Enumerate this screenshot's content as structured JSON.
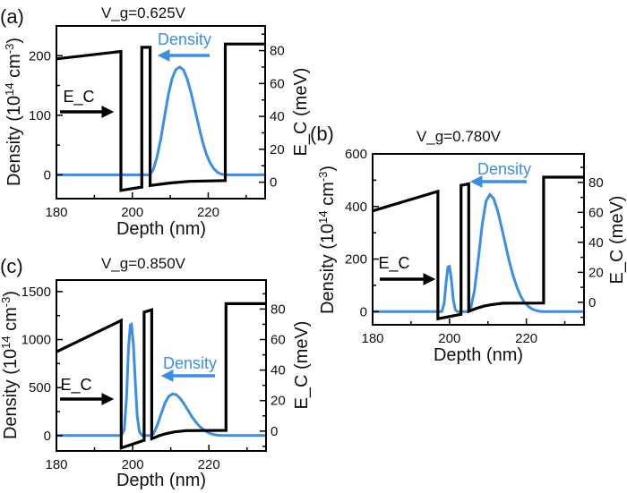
{
  "colors": {
    "density": "#3a8ee6",
    "ec": "#000000"
  },
  "chart_data": [
    {
      "type": "line",
      "panel_label": "(a)",
      "title": "V_g=0.625V",
      "xlabel": "Depth (nm)",
      "ylabel": "Density (10^14 cm^-3)",
      "y2label": "E_C (meV)",
      "xlim": [
        180,
        235
      ],
      "ylim": [
        -40,
        250
      ],
      "y2lim": [
        -10,
        95
      ],
      "xticks": [
        180,
        200,
        220
      ],
      "yticks": [
        0,
        100,
        200
      ],
      "y2ticks": [
        0,
        20,
        40,
        60,
        80
      ],
      "annotations": {
        "density": "Density",
        "ec": "E_C"
      },
      "series": [
        {
          "name": "Density",
          "axis": "left",
          "points": [
            [
              180,
              0
            ],
            [
              204.5,
              0
            ],
            [
              205.5,
              8
            ],
            [
              206.5,
              30
            ],
            [
              207.5,
              60
            ],
            [
              208.5,
              98
            ],
            [
              209.5,
              135
            ],
            [
              210.5,
              162
            ],
            [
              211.5,
              177
            ],
            [
              212.5,
              181
            ],
            [
              213.5,
              176
            ],
            [
              214.5,
              160
            ],
            [
              215.5,
              137
            ],
            [
              216.5,
              110
            ],
            [
              217.5,
              82
            ],
            [
              218.5,
              56
            ],
            [
              219.5,
              35
            ],
            [
              220.5,
              20
            ],
            [
              221.5,
              10
            ],
            [
              222.5,
              4
            ],
            [
              223.5,
              1
            ],
            [
              224.5,
              0
            ],
            [
              235,
              0
            ]
          ]
        },
        {
          "name": "E_C",
          "axis": "right",
          "points": [
            [
              180,
              75
            ],
            [
              197,
              79.5
            ],
            [
              197,
              -5
            ],
            [
              202.5,
              -3
            ],
            [
              202.5,
              82
            ],
            [
              204.7,
              82
            ],
            [
              204.7,
              -2
            ],
            [
              210,
              -0.5
            ],
            [
              215,
              0.5
            ],
            [
              224.5,
              1
            ],
            [
              224.5,
              84
            ],
            [
              235,
              84
            ]
          ]
        }
      ]
    },
    {
      "type": "line",
      "panel_label": "(b)",
      "title": "V_g=0.780V",
      "xlabel": "Depth (nm)",
      "ylabel": "Density (10^14 cm^-3)",
      "y2label": "E_C (meV)",
      "xlim": [
        180,
        235
      ],
      "ylim": [
        -50,
        600
      ],
      "y2lim": [
        -15,
        99
      ],
      "xticks": [
        180,
        200,
        220
      ],
      "yticks": [
        0,
        200,
        400,
        600
      ],
      "y2ticks": [
        0,
        20,
        40,
        60,
        80
      ],
      "annotations": {
        "density": "Density",
        "ec": "E_C"
      },
      "series": [
        {
          "name": "Density",
          "axis": "left",
          "points": [
            [
              180,
              0
            ],
            [
              198,
              0
            ],
            [
              198.6,
              30
            ],
            [
              199.1,
              110
            ],
            [
              199.6,
              170
            ],
            [
              200,
              172
            ],
            [
              200.5,
              120
            ],
            [
              201,
              45
            ],
            [
              201.5,
              8
            ],
            [
              202,
              0
            ],
            [
              205,
              0
            ],
            [
              205.5,
              10
            ],
            [
              206.5,
              80
            ],
            [
              207.5,
              200
            ],
            [
              208.5,
              330
            ],
            [
              209.5,
              420
            ],
            [
              210.5,
              445
            ],
            [
              211.5,
              430
            ],
            [
              212.5,
              385
            ],
            [
              213.5,
              325
            ],
            [
              214.5,
              260
            ],
            [
              215.5,
              195
            ],
            [
              216.5,
              140
            ],
            [
              217.5,
              95
            ],
            [
              218.5,
              60
            ],
            [
              219.5,
              35
            ],
            [
              220.5,
              20
            ],
            [
              221.5,
              10
            ],
            [
              222.5,
              4
            ],
            [
              223.5,
              1
            ],
            [
              224.5,
              0
            ],
            [
              235,
              0
            ]
          ]
        },
        {
          "name": "E_C",
          "axis": "right",
          "points": [
            [
              180,
              61
            ],
            [
              197,
              74
            ],
            [
              197,
              -11
            ],
            [
              203,
              -8
            ],
            [
              203,
              78
            ],
            [
              205,
              79
            ],
            [
              205,
              -6
            ],
            [
              207,
              -4
            ],
            [
              209,
              -2.5
            ],
            [
              211,
              -1.5
            ],
            [
              214,
              -0.6
            ],
            [
              224.5,
              -0.5
            ],
            [
              224.5,
              83.5
            ],
            [
              235,
              83.5
            ]
          ]
        }
      ]
    },
    {
      "type": "line",
      "panel_label": "(c)",
      "title": "V_g=0.850V",
      "xlabel": "Depth (nm)",
      "ylabel": "Density (10^14 cm^-3)",
      "y2label": "E_C (meV)",
      "xlim": [
        180,
        235
      ],
      "ylim": [
        -160,
        1620
      ],
      "y2lim": [
        -13,
        99
      ],
      "xticks": [
        180,
        200,
        220
      ],
      "yticks": [
        0,
        500,
        1000,
        1500
      ],
      "y2ticks": [
        0,
        20,
        40,
        60,
        80
      ],
      "annotations": {
        "density": "Density",
        "ec": "E_C"
      },
      "series": [
        {
          "name": "Density",
          "axis": "left",
          "points": [
            [
              180,
              0
            ],
            [
              197,
              0
            ],
            [
              197.8,
              60
            ],
            [
              198.4,
              400
            ],
            [
              198.9,
              900
            ],
            [
              199.4,
              1150
            ],
            [
              199.7,
              1160
            ],
            [
              200.2,
              950
            ],
            [
              200.7,
              550
            ],
            [
              201.2,
              200
            ],
            [
              201.8,
              40
            ],
            [
              202.5,
              0
            ],
            [
              205,
              0
            ],
            [
              205.5,
              20
            ],
            [
              206.5,
              110
            ],
            [
              207.5,
              230
            ],
            [
              208.5,
              340
            ],
            [
              209.5,
              410
            ],
            [
              210.5,
              435
            ],
            [
              211.5,
              425
            ],
            [
              212.5,
              385
            ],
            [
              213.5,
              330
            ],
            [
              214.5,
              265
            ],
            [
              215.5,
              200
            ],
            [
              216.5,
              145
            ],
            [
              217.5,
              100
            ],
            [
              218.5,
              65
            ],
            [
              219.5,
              38
            ],
            [
              220.5,
              20
            ],
            [
              221.5,
              9
            ],
            [
              222.5,
              3
            ],
            [
              223.5,
              1
            ],
            [
              224.5,
              0
            ],
            [
              235,
              0
            ]
          ]
        },
        {
          "name": "E_C",
          "axis": "right",
          "points": [
            [
              180,
              52
            ],
            [
              197,
              72.5
            ],
            [
              197,
              -11
            ],
            [
              203,
              -6
            ],
            [
              203,
              78
            ],
            [
              205,
              79.5
            ],
            [
              205,
              -5
            ],
            [
              207,
              -3
            ],
            [
              209,
              -1.5
            ],
            [
              211,
              -0.5
            ],
            [
              214,
              0.3
            ],
            [
              224.5,
              0.5
            ],
            [
              224.5,
              83.5
            ],
            [
              235,
              83.5
            ]
          ]
        }
      ]
    }
  ]
}
